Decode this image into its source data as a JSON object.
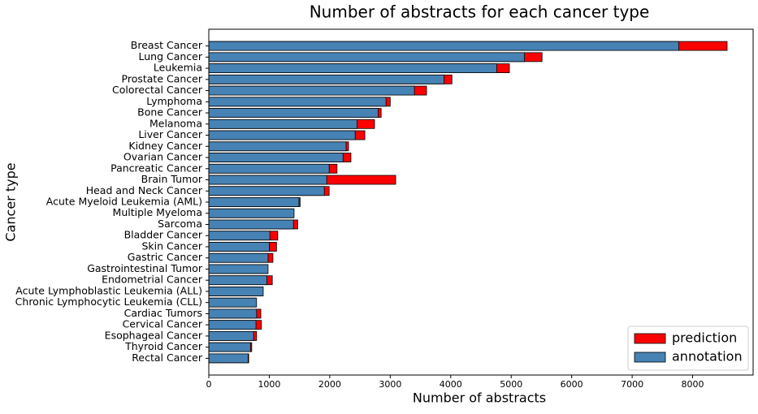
{
  "chart_data": {
    "type": "bar",
    "orientation": "horizontal",
    "overlay": true,
    "title": "Number of abstracts for each cancer type",
    "x_label": "Number of abstracts",
    "y_label": "Cancer type",
    "categories": [
      "Breast Cancer",
      "Lung Cancer",
      "Leukemia",
      "Prostate Cancer",
      "Colorectal Cancer",
      "Lymphoma",
      "Bone Cancer",
      "Melanoma",
      "Liver Cancer",
      "Kidney Cancer",
      "Ovarian Cancer",
      "Pancreatic Cancer",
      "Brain Tumor",
      "Head and Neck Cancer",
      "Acute Myeloid Leukemia (AML)",
      "Multiple Myeloma",
      "Sarcoma",
      "Bladder Cancer",
      "Skin Cancer",
      "Gastric Cancer",
      "Gastrointestinal Tumor",
      "Endometrial Cancer",
      "Acute Lymphoblastic Leukemia (ALL)",
      "Chronic Lymphocytic Leukemia (CLL)",
      "Cardiac Tumors",
      "Cervical Cancer",
      "Esophageal Cancer",
      "Thyroid Cancer",
      "Rectal Cancer"
    ],
    "series": [
      {
        "name": "prediction",
        "color": "#ff0000",
        "values": [
          8570,
          5510,
          4970,
          4020,
          3600,
          3000,
          2850,
          2740,
          2580,
          2310,
          2350,
          2120,
          3090,
          1990,
          1510,
          1400,
          1470,
          1140,
          1120,
          1060,
          970,
          1050,
          890,
          780,
          860,
          870,
          790,
          710,
          660
        ]
      },
      {
        "name": "annotation",
        "color": "#4682b4",
        "values": [
          7770,
          5220,
          4760,
          3890,
          3400,
          2930,
          2800,
          2450,
          2420,
          2270,
          2220,
          1990,
          1950,
          1910,
          1490,
          1410,
          1400,
          1010,
          1000,
          980,
          980,
          960,
          900,
          790,
          790,
          780,
          740,
          690,
          650
        ]
      }
    ],
    "xlim": [
      0,
      9000
    ],
    "xticks": [
      0,
      1000,
      2000,
      3000,
      4000,
      5000,
      6000,
      7000,
      8000
    ],
    "legend": "lower right"
  }
}
